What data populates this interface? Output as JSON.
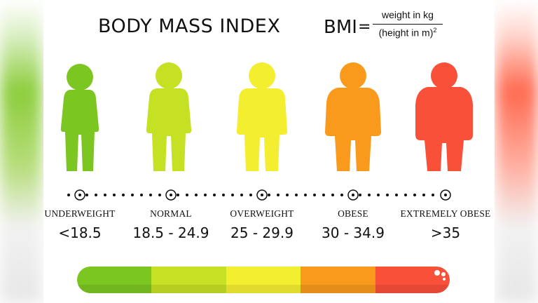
{
  "title": "BODY MASS INDEX",
  "formula": {
    "lhs": "BMI",
    "equals": "=",
    "numerator": "weight in kg",
    "denominator": "(height in m)",
    "exponent": "2"
  },
  "categories": [
    {
      "label": "UNDERWEIGHT",
      "range": "<18.5",
      "color": "#7cc622",
      "shade": "#6cb31a"
    },
    {
      "label": "NORMAL",
      "range": "18.5 - 24.9",
      "color": "#c6e024",
      "shade": "#b3cd18"
    },
    {
      "label": "OVERWEIGHT",
      "range": "25 - 29.9",
      "color": "#f4ee30",
      "shade": "#e3dc20"
    },
    {
      "label": "OBESE",
      "range": "30 - 34.9",
      "color": "#f99a1c",
      "shade": "#ea8a10"
    },
    {
      "label": "EXTREMELY OBESE",
      "range": ">35",
      "color": "#f9503a",
      "shade": "#ea3f2a"
    }
  ]
}
